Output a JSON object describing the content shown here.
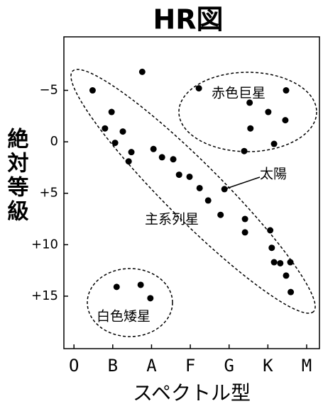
{
  "chart_data": {
    "type": "scatter",
    "title": "HR図",
    "x_label": "スペクトル型",
    "y_label": "絶対等級",
    "xlim": [
      -0.26,
      6.33
    ],
    "ylim": [
      -10.2,
      20.1
    ],
    "y_inverted": true,
    "color": "#000000",
    "xticks": [
      {
        "value": 0,
        "label": "O"
      },
      {
        "value": 1,
        "label": "B"
      },
      {
        "value": 2,
        "label": "A"
      },
      {
        "value": 3,
        "label": "F"
      },
      {
        "value": 4,
        "label": "G"
      },
      {
        "value": 5,
        "label": "K"
      },
      {
        "value": 6,
        "label": "M"
      }
    ],
    "yticks": [
      {
        "value": -5,
        "label": "−5"
      },
      0,
      {
        "value": 5,
        "label": "+5"
      },
      {
        "value": 10,
        "label": "+10"
      },
      {
        "value": 15,
        "label": "+15"
      }
    ],
    "x": [
      0.48,
      1.76,
      0.97,
      0.8,
      1.26,
      1.06,
      1.48,
      1.41,
      2.05,
      2.27,
      2.56,
      2.71,
      2.98,
      3.24,
      3.46,
      3.88,
      3.78,
      4.41,
      4.41,
      5.06,
      5.1,
      5.16,
      5.32,
      5.47,
      5.58,
      5.59,
      3.22,
      5.47,
      4.53,
      5.01,
      5.45,
      4.55,
      5.16,
      4.39,
      1.1,
      1.72,
      1.97
    ],
    "values": [
      -5.0,
      -6.8,
      -2.9,
      -1.3,
      -1.0,
      0.1,
      1.0,
      1.9,
      0.7,
      1.5,
      1.7,
      3.2,
      3.4,
      4.5,
      5.7,
      4.6,
      7.1,
      7.5,
      8.8,
      8.6,
      10.3,
      11.7,
      11.8,
      13.0,
      11.7,
      14.6,
      -5.2,
      -5.0,
      -3.8,
      -2.9,
      -2.1,
      -1.3,
      0.2,
      0.9,
      14.1,
      13.9,
      15.2
    ],
    "annotations": [
      "赤色巨星",
      "太陽",
      "主系列星",
      "白色矮星"
    ]
  }
}
